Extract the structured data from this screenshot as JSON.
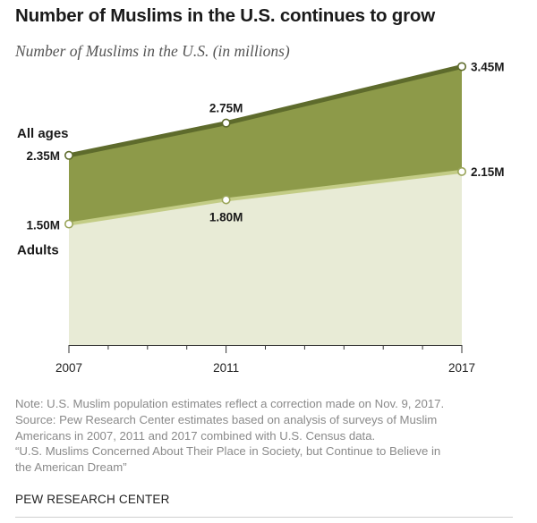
{
  "title": "Number of Muslims in the U.S. continues to grow",
  "subtitle": "Number of Muslims in the U.S. (in millions)",
  "chart_data": {
    "type": "area",
    "x": [
      2007,
      2011,
      2017
    ],
    "xlabel": "",
    "ylabel": "",
    "ylim": [
      0,
      3.6
    ],
    "grid": false,
    "series": [
      {
        "name": "All ages",
        "values": [
          2.35,
          2.75,
          3.45
        ],
        "labels": [
          "2.35M",
          "2.75M",
          "3.45M"
        ],
        "color": "#8d9a49",
        "line_color": "#5e6b2c"
      },
      {
        "name": "Adults",
        "values": [
          1.5,
          1.8,
          2.15
        ],
        "labels": [
          "1.50M",
          "1.80M",
          "2.15M"
        ],
        "color": "#e8ebd6",
        "line_color": "#c3cc86"
      }
    ]
  },
  "notes": [
    "Note: U.S. Muslim population estimates reflect a correction made on Nov. 9, 2017.",
    "Source: Pew Research Center estimates based on analysis of surveys of Muslim",
    "Americans in 2007, 2011 and 2017 combined with U.S. Census data.",
    "“U.S. Muslims Concerned About Their Place in Society, but Continue to Believe in",
    "the American Dream”"
  ],
  "brand": "PEW RESEARCH CENTER"
}
